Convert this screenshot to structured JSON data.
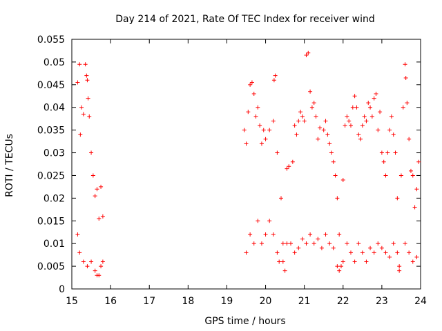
{
  "chart_data": {
    "type": "scatter",
    "title": "Day 214 of 2021, Rate Of TEC Index for receiver wind",
    "xlabel": "GPS time / hours",
    "ylabel": "ROTI / TECUs",
    "xlim": [
      15,
      24
    ],
    "ylim": [
      0,
      0.055
    ],
    "xticks": [
      "15",
      "16",
      "17",
      "18",
      "19",
      "20",
      "21",
      "22",
      "23",
      "24"
    ],
    "yticks": [
      "0",
      "0.005",
      "0.01",
      "0.015",
      "0.02",
      "0.025",
      "0.03",
      "0.035",
      "0.04",
      "0.045",
      "0.05",
      "0.055"
    ],
    "grid": false,
    "marker": "+",
    "series": [
      {
        "name": "ROTI",
        "color": "#ff0000",
        "points": [
          [
            15.15,
            0.0455
          ],
          [
            15.2,
            0.0495
          ],
          [
            15.22,
            0.034
          ],
          [
            15.25,
            0.04
          ],
          [
            15.3,
            0.0385
          ],
          [
            15.35,
            0.0495
          ],
          [
            15.38,
            0.047
          ],
          [
            15.4,
            0.046
          ],
          [
            15.42,
            0.042
          ],
          [
            15.45,
            0.038
          ],
          [
            15.5,
            0.03
          ],
          [
            15.55,
            0.025
          ],
          [
            15.6,
            0.0205
          ],
          [
            15.65,
            0.022
          ],
          [
            15.7,
            0.0155
          ],
          [
            15.75,
            0.0225
          ],
          [
            15.8,
            0.016
          ],
          [
            15.15,
            0.012
          ],
          [
            15.2,
            0.008
          ],
          [
            15.3,
            0.006
          ],
          [
            15.4,
            0.005
          ],
          [
            15.5,
            0.006
          ],
          [
            15.6,
            0.004
          ],
          [
            15.65,
            0.003
          ],
          [
            15.7,
            0.003
          ],
          [
            15.75,
            0.005
          ],
          [
            15.8,
            0.006
          ],
          [
            19.45,
            0.035
          ],
          [
            19.5,
            0.032
          ],
          [
            19.55,
            0.039
          ],
          [
            19.6,
            0.045
          ],
          [
            19.65,
            0.0455
          ],
          [
            19.7,
            0.043
          ],
          [
            19.75,
            0.038
          ],
          [
            19.8,
            0.04
          ],
          [
            19.85,
            0.036
          ],
          [
            19.9,
            0.032
          ],
          [
            19.95,
            0.035
          ],
          [
            20.0,
            0.033
          ],
          [
            20.1,
            0.035
          ],
          [
            20.2,
            0.037
          ],
          [
            20.22,
            0.046
          ],
          [
            20.25,
            0.047
          ],
          [
            20.3,
            0.03
          ],
          [
            20.4,
            0.02
          ],
          [
            20.45,
            0.01
          ],
          [
            20.5,
            0.004
          ],
          [
            20.55,
            0.0265
          ],
          [
            20.6,
            0.027
          ],
          [
            20.7,
            0.028
          ],
          [
            20.75,
            0.036
          ],
          [
            20.8,
            0.034
          ],
          [
            20.85,
            0.037
          ],
          [
            20.9,
            0.039
          ],
          [
            20.95,
            0.038
          ],
          [
            21.0,
            0.037
          ],
          [
            21.05,
            0.0515
          ],
          [
            21.1,
            0.052
          ],
          [
            21.15,
            0.0435
          ],
          [
            21.2,
            0.04
          ],
          [
            21.25,
            0.041
          ],
          [
            21.3,
            0.038
          ],
          [
            21.35,
            0.033
          ],
          [
            21.4,
            0.0355
          ],
          [
            21.5,
            0.035
          ],
          [
            21.55,
            0.037
          ],
          [
            21.6,
            0.034
          ],
          [
            21.65,
            0.032
          ],
          [
            21.7,
            0.03
          ],
          [
            21.75,
            0.028
          ],
          [
            21.8,
            0.025
          ],
          [
            21.85,
            0.02
          ],
          [
            21.9,
            0.012
          ],
          [
            21.95,
            0.005
          ],
          [
            22.0,
            0.024
          ],
          [
            22.05,
            0.036
          ],
          [
            22.1,
            0.038
          ],
          [
            22.15,
            0.037
          ],
          [
            22.2,
            0.036
          ],
          [
            22.25,
            0.04
          ],
          [
            22.3,
            0.0425
          ],
          [
            22.35,
            0.04
          ],
          [
            22.4,
            0.034
          ],
          [
            22.45,
            0.033
          ],
          [
            22.5,
            0.036
          ],
          [
            22.55,
            0.038
          ],
          [
            22.6,
            0.037
          ],
          [
            22.65,
            0.041
          ],
          [
            22.7,
            0.04
          ],
          [
            22.75,
            0.038
          ],
          [
            22.8,
            0.042
          ],
          [
            22.85,
            0.043
          ],
          [
            22.9,
            0.035
          ],
          [
            22.95,
            0.039
          ],
          [
            23.0,
            0.03
          ],
          [
            23.05,
            0.028
          ],
          [
            23.1,
            0.025
          ],
          [
            23.15,
            0.03
          ],
          [
            23.2,
            0.035
          ],
          [
            23.25,
            0.038
          ],
          [
            23.3,
            0.034
          ],
          [
            23.35,
            0.03
          ],
          [
            23.4,
            0.02
          ],
          [
            23.45,
            0.005
          ],
          [
            23.5,
            0.025
          ],
          [
            23.55,
            0.04
          ],
          [
            23.6,
            0.0495
          ],
          [
            23.62,
            0.0465
          ],
          [
            23.65,
            0.041
          ],
          [
            23.7,
            0.033
          ],
          [
            23.75,
            0.026
          ],
          [
            23.8,
            0.025
          ],
          [
            23.85,
            0.018
          ],
          [
            23.9,
            0.022
          ],
          [
            23.95,
            0.028
          ],
          [
            19.5,
            0.008
          ],
          [
            19.6,
            0.012
          ],
          [
            19.7,
            0.01
          ],
          [
            19.8,
            0.015
          ],
          [
            19.9,
            0.01
          ],
          [
            20.0,
            0.012
          ],
          [
            20.1,
            0.015
          ],
          [
            20.2,
            0.012
          ],
          [
            20.3,
            0.008
          ],
          [
            20.35,
            0.006
          ],
          [
            20.45,
            0.006
          ],
          [
            20.55,
            0.01
          ],
          [
            20.65,
            0.01
          ],
          [
            20.75,
            0.008
          ],
          [
            20.85,
            0.009
          ],
          [
            20.95,
            0.011
          ],
          [
            21.05,
            0.01
          ],
          [
            21.15,
            0.012
          ],
          [
            21.25,
            0.01
          ],
          [
            21.35,
            0.011
          ],
          [
            21.45,
            0.009
          ],
          [
            21.55,
            0.012
          ],
          [
            21.65,
            0.01
          ],
          [
            21.75,
            0.009
          ],
          [
            21.85,
            0.005
          ],
          [
            21.9,
            0.004
          ],
          [
            22.0,
            0.006
          ],
          [
            22.1,
            0.01
          ],
          [
            22.2,
            0.008
          ],
          [
            22.3,
            0.006
          ],
          [
            22.4,
            0.01
          ],
          [
            22.5,
            0.008
          ],
          [
            22.6,
            0.006
          ],
          [
            22.7,
            0.009
          ],
          [
            22.8,
            0.008
          ],
          [
            22.9,
            0.01
          ],
          [
            23.0,
            0.009
          ],
          [
            23.1,
            0.008
          ],
          [
            23.2,
            0.007
          ],
          [
            23.3,
            0.01
          ],
          [
            23.4,
            0.008
          ],
          [
            23.45,
            0.004
          ],
          [
            23.6,
            0.01
          ],
          [
            23.7,
            0.008
          ],
          [
            23.8,
            0.006
          ],
          [
            23.9,
            0.007
          ]
        ]
      }
    ]
  }
}
